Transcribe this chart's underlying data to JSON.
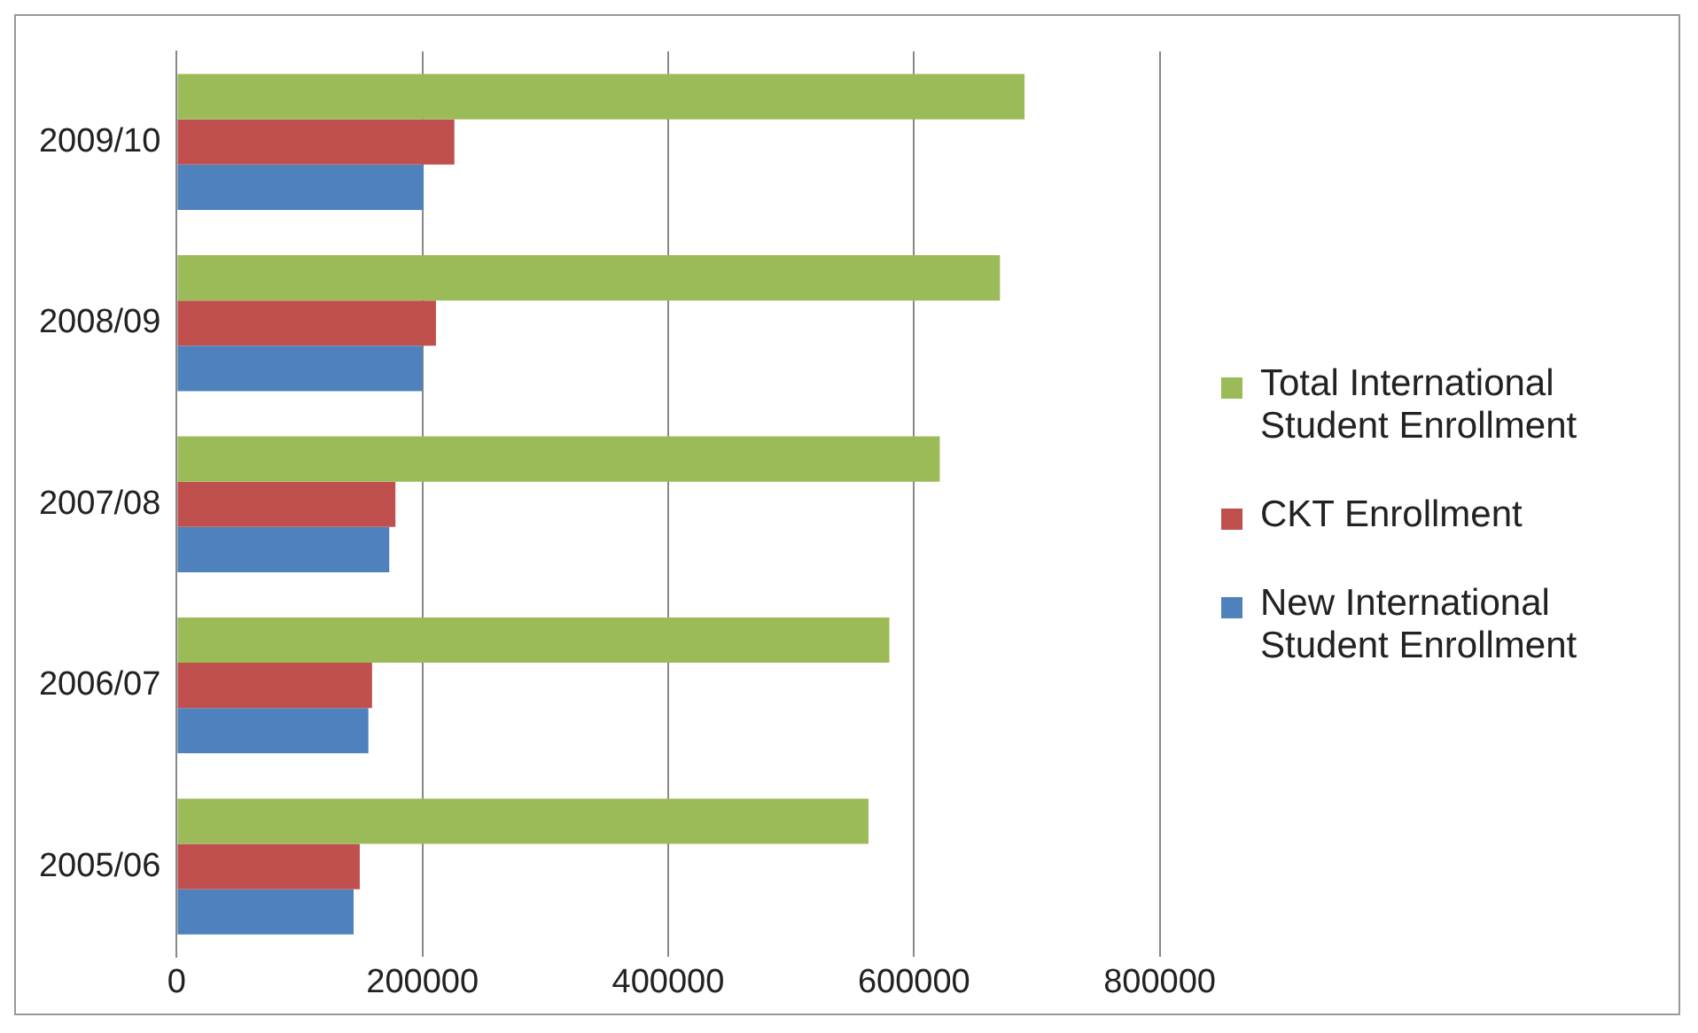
{
  "chart_data": {
    "type": "bar",
    "orientation": "horizontal",
    "categories": [
      "2009/10",
      "2008/09",
      "2007/08",
      "2006/07",
      "2005/06"
    ],
    "series": [
      {
        "name": "Total International Student Enrollment",
        "color": "#9bbb59",
        "values": [
          690000,
          670000,
          621000,
          580000,
          563000
        ]
      },
      {
        "name": "CKT Enrollment",
        "color": "#c0504d",
        "values": [
          226000,
          211000,
          178000,
          159000,
          149000
        ]
      },
      {
        "name": "New International Student Enrollment",
        "color": "#4f81bd",
        "values": [
          201000,
          200000,
          173000,
          156000,
          144000
        ]
      }
    ],
    "xlim": [
      0,
      800000
    ],
    "xticks": [
      0,
      200000,
      400000,
      600000,
      800000
    ],
    "grid": "x",
    "legend": "right"
  }
}
